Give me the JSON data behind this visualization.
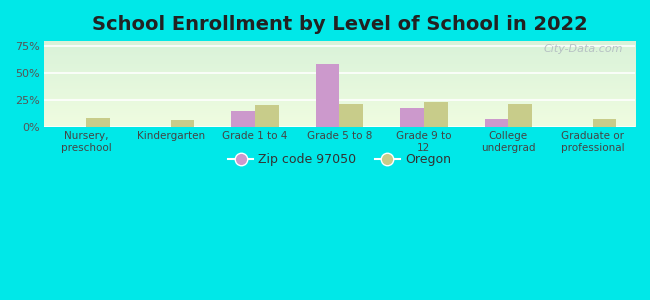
{
  "title": "School Enrollment by Level of School in 2022",
  "categories": [
    "Nursery,\npreschool",
    "Kindergarten",
    "Grade 1 to 4",
    "Grade 5 to 8",
    "Grade 9 to\n12",
    "College\nundergrad",
    "Graduate or\nprofessional"
  ],
  "zip_values": [
    0.0,
    0.0,
    15.0,
    59.0,
    18.0,
    8.0,
    0.0
  ],
  "oregon_values": [
    8.5,
    7.0,
    20.5,
    21.5,
    23.0,
    22.0,
    8.0
  ],
  "zip_color": "#cc99cc",
  "oregon_color": "#c8cc8a",
  "background_color": "#00e8e8",
  "plot_bg_color": "#dff0df",
  "legend_zip_label": "Zip code 97050",
  "legend_oregon_label": "Oregon",
  "yticks": [
    0,
    25,
    50,
    75
  ],
  "ytick_labels": [
    "0%",
    "25%",
    "50%",
    "75%"
  ],
  "ylim": [
    0,
    80
  ],
  "bar_width": 0.28,
  "title_fontsize": 14,
  "watermark_text": "City-Data.com"
}
